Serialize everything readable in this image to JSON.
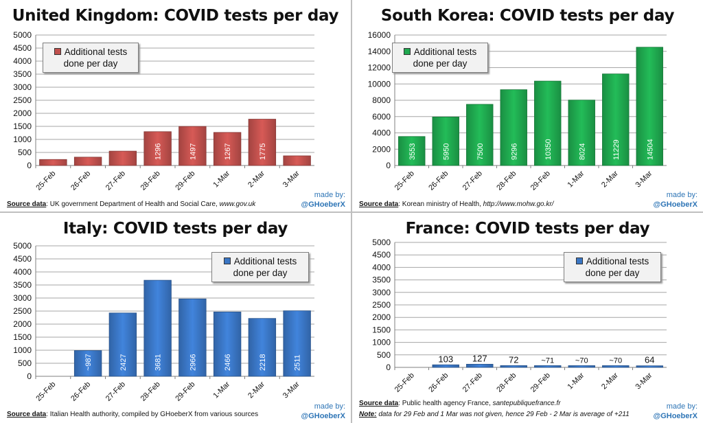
{
  "panels": [
    {
      "id": "uk",
      "title": "United Kingdom: COVID tests per day",
      "source_label": "Source data",
      "source_text": ": UK government Department of Health and Social Care, ",
      "source_italic": "www.gov.uk",
      "note_label": "",
      "note_text": "",
      "made_by": "made by:",
      "handle": "@GHoeberX",
      "legend": [
        "Additional tests",
        "done per day"
      ]
    },
    {
      "id": "kr",
      "title": "South Korea: COVID tests per day",
      "source_label": "Source data",
      "source_text": ": Korean ministry of Health, ",
      "source_italic": "http://www.mohw.go.kr/",
      "note_label": "",
      "note_text": "",
      "made_by": "made by:",
      "handle": "@GHoeberX",
      "legend": [
        "Additional tests",
        "done per day"
      ]
    },
    {
      "id": "it",
      "title": "Italy: COVID tests per day",
      "source_label": "Source data",
      "source_text": ": Italian Health authority, compiled by GHoeberX from various sources",
      "source_italic": "",
      "note_label": "",
      "note_text": "",
      "made_by": "made by:",
      "handle": "@GHoeberX",
      "legend": [
        "Additional tests",
        "done per day"
      ]
    },
    {
      "id": "fr",
      "title": "France: COVID tests per day",
      "source_label": "Source data",
      "source_text": ": Public health agency France, ",
      "source_italic": "santepubliquefrance.fr",
      "note_label": "Note:",
      "note_text": " data for 29 Feb and 1 Mar was not given, hence 29 Feb - 2 Mar is average of +211",
      "made_by": "made by:",
      "handle": "@GHoeberX",
      "legend": [
        "Additional tests",
        "done per day"
      ]
    }
  ],
  "chart_data": [
    {
      "type": "bar",
      "title": "United Kingdom: COVID tests per day",
      "categories": [
        "25-Feb",
        "26-Feb",
        "27-Feb",
        "28-Feb",
        "29-Feb",
        "1-Mar",
        "2-Mar",
        "3-Mar"
      ],
      "series": [
        {
          "name": "Additional tests done per day",
          "values": [
            230,
            320,
            550,
            1296,
            1497,
            1267,
            1775,
            370
          ],
          "color": "#c0504d"
        }
      ],
      "data_labels": [
        "",
        "",
        "",
        "1296",
        "1497",
        "1267",
        "1775",
        ""
      ],
      "ylim": [
        0,
        5000
      ],
      "yticks": [
        0,
        500,
        1000,
        1500,
        2000,
        2500,
        3000,
        3500,
        4000,
        4500,
        5000
      ],
      "label_mode": "inside-vertical",
      "grid": true,
      "legend_position": "top-left"
    },
    {
      "type": "bar",
      "title": "South Korea: COVID tests per day",
      "categories": [
        "25-Feb",
        "26-Feb",
        "27-Feb",
        "28-Feb",
        "29-Feb",
        "1-Mar",
        "2-Mar",
        "3-Mar"
      ],
      "series": [
        {
          "name": "Additional tests done per day",
          "values": [
            3553,
            5950,
            7500,
            9296,
            10350,
            8024,
            11229,
            14504
          ],
          "color": "#1fa84f"
        }
      ],
      "data_labels": [
        "3553",
        "5950",
        "7500",
        "9296",
        "10350",
        "8024",
        "11229",
        "14504"
      ],
      "ylim": [
        0,
        16000
      ],
      "yticks": [
        0,
        2000,
        4000,
        6000,
        8000,
        10000,
        12000,
        14000,
        16000
      ],
      "label_mode": "inside-vertical",
      "grid": true,
      "legend_position": "top-left"
    },
    {
      "type": "bar",
      "title": "Italy: COVID tests per day",
      "categories": [
        "25-Feb",
        "26-Feb",
        "27-Feb",
        "28-Feb",
        "29-Feb",
        "1-Mar",
        "2-Mar",
        "3-Mar"
      ],
      "series": [
        {
          "name": "Additional tests done per day",
          "values": [
            0,
            987,
            2427,
            3681,
            2966,
            2466,
            2218,
            2511
          ],
          "color": "#3a76c4"
        }
      ],
      "data_labels": [
        "",
        "~987",
        "2427",
        "3681",
        "2966",
        "2466",
        "2218",
        "2511"
      ],
      "ylim": [
        0,
        5000
      ],
      "yticks": [
        0,
        500,
        1000,
        1500,
        2000,
        2500,
        3000,
        3500,
        4000,
        4500,
        5000
      ],
      "label_mode": "inside-vertical",
      "grid": true,
      "legend_position": "top-right"
    },
    {
      "type": "bar",
      "title": "France: COVID tests per day",
      "categories": [
        "25-Feb",
        "26-Feb",
        "27-Feb",
        "28-Feb",
        "29-Feb",
        "1-Mar",
        "2-Mar",
        "3-Mar"
      ],
      "series": [
        {
          "name": "Additional tests done per day",
          "values": [
            0,
            103,
            127,
            72,
            71,
            70,
            70,
            64
          ],
          "color": "#3a76c4"
        }
      ],
      "data_labels": [
        "",
        "103",
        "127",
        "72",
        "~71",
        "~70",
        "~70",
        "64"
      ],
      "ylim": [
        0,
        5000
      ],
      "yticks": [
        0,
        500,
        1000,
        1500,
        2000,
        2500,
        3000,
        3500,
        4000,
        4500,
        5000
      ],
      "label_mode": "above",
      "grid": true,
      "legend_position": "top-right"
    }
  ]
}
